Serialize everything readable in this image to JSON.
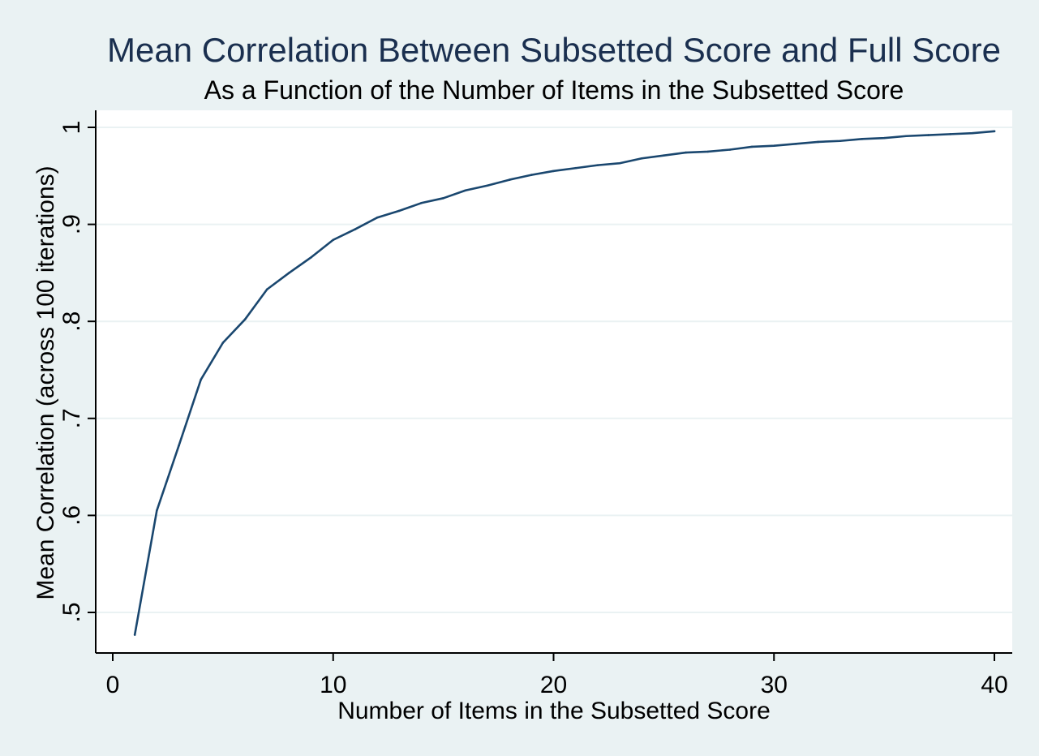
{
  "chart_data": {
    "type": "line",
    "title": "Mean Correlation Between Subsetted Score and Full Score",
    "subtitle": "As a Function of the Number of Items in the Subsetted Score",
    "xlabel": "Number of Items in the Subsetted Score",
    "ylabel": "Mean Correlation (across 100 iterations)",
    "xlim": [
      0,
      40
    ],
    "ylim": [
      0.5,
      1
    ],
    "x_ticks": [
      0,
      10,
      20,
      30,
      40
    ],
    "x_tick_labels": [
      "0",
      "10",
      "20",
      "30",
      "40"
    ],
    "y_ticks": [
      0.5,
      0.6,
      0.7,
      0.8,
      0.9,
      1
    ],
    "y_tick_labels": [
      ".5",
      ".6",
      ".7",
      ".8",
      ".9",
      "1"
    ],
    "grid": true,
    "legend": "none",
    "series": [
      {
        "x": [
          1,
          2,
          3,
          4,
          5,
          6,
          7,
          8,
          9,
          10,
          11,
          12,
          13,
          14,
          15,
          16,
          17,
          18,
          19,
          20,
          21,
          22,
          23,
          24,
          25,
          26,
          27,
          28,
          29,
          30,
          31,
          32,
          33,
          34,
          35,
          36,
          37,
          38,
          39,
          40
        ],
        "values": [
          0.477,
          0.605,
          0.672,
          0.74,
          0.778,
          0.802,
          0.833,
          0.85,
          0.866,
          0.884,
          0.895,
          0.907,
          0.914,
          0.922,
          0.927,
          0.935,
          0.94,
          0.946,
          0.951,
          0.955,
          0.958,
          0.961,
          0.963,
          0.968,
          0.971,
          0.974,
          0.975,
          0.977,
          0.98,
          0.981,
          0.983,
          0.985,
          0.986,
          0.988,
          0.989,
          0.991,
          0.992,
          0.993,
          0.994,
          0.996
        ]
      }
    ]
  },
  "colors": {
    "background": "#eaf2f3",
    "plot_area": "#ffffff",
    "grid": "#eaf2f3",
    "line": "#1a476f",
    "title": "#1a2f4f"
  }
}
